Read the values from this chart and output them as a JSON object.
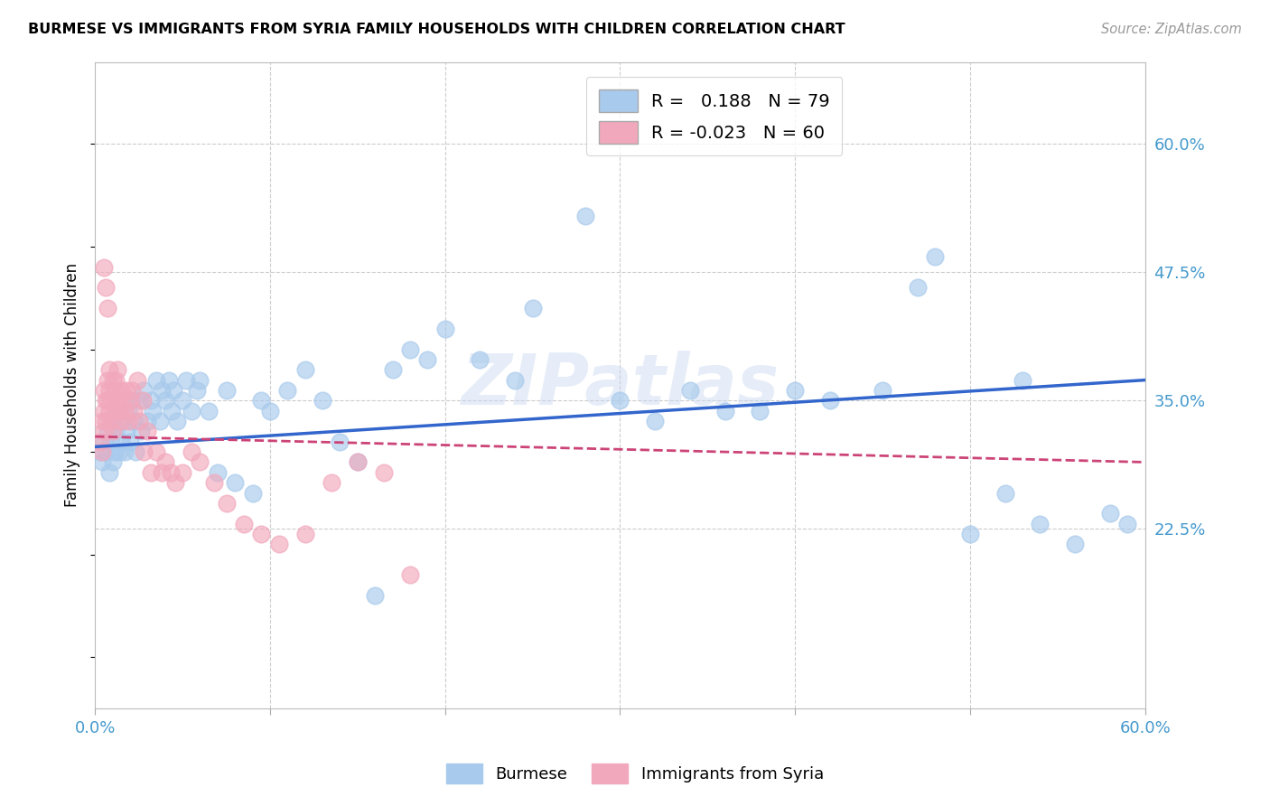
{
  "title": "BURMESE VS IMMIGRANTS FROM SYRIA FAMILY HOUSEHOLDS WITH CHILDREN CORRELATION CHART",
  "source": "Source: ZipAtlas.com",
  "ylabel": "Family Households with Children",
  "xlim": [
    0.0,
    0.6
  ],
  "ylim": [
    0.05,
    0.68
  ],
  "ytick_right_labels": [
    "60.0%",
    "47.5%",
    "35.0%",
    "22.5%"
  ],
  "ytick_right_values": [
    0.6,
    0.475,
    0.35,
    0.225
  ],
  "legend_r_blue": "0.188",
  "legend_n_blue": "79",
  "legend_r_pink": "-0.023",
  "legend_n_pink": "60",
  "blue_color": "#A8CAEC",
  "pink_color": "#F2A8BC",
  "blue_line_color": "#3366CC",
  "pink_line_color": "#CC4477",
  "watermark": "ZIPatlas",
  "burmese_x": [
    0.003,
    0.004,
    0.005,
    0.006,
    0.007,
    0.008,
    0.009,
    0.01,
    0.01,
    0.011,
    0.012,
    0.013,
    0.014,
    0.015,
    0.016,
    0.017,
    0.018,
    0.019,
    0.02,
    0.021,
    0.022,
    0.023,
    0.025,
    0.026,
    0.028,
    0.03,
    0.032,
    0.033,
    0.035,
    0.037,
    0.038,
    0.04,
    0.042,
    0.044,
    0.045,
    0.047,
    0.05,
    0.052,
    0.055,
    0.058,
    0.06,
    0.065,
    0.07,
    0.075,
    0.08,
    0.09,
    0.095,
    0.1,
    0.11,
    0.12,
    0.13,
    0.14,
    0.15,
    0.16,
    0.17,
    0.18,
    0.19,
    0.2,
    0.22,
    0.24,
    0.25,
    0.28,
    0.3,
    0.32,
    0.34,
    0.36,
    0.38,
    0.4,
    0.42,
    0.45,
    0.47,
    0.5,
    0.52,
    0.54,
    0.56,
    0.58,
    0.59,
    0.53,
    0.48
  ],
  "burmese_y": [
    0.3,
    0.29,
    0.31,
    0.3,
    0.32,
    0.28,
    0.31,
    0.33,
    0.29,
    0.3,
    0.32,
    0.34,
    0.3,
    0.31,
    0.33,
    0.3,
    0.32,
    0.34,
    0.31,
    0.35,
    0.33,
    0.3,
    0.35,
    0.32,
    0.36,
    0.33,
    0.35,
    0.34,
    0.37,
    0.33,
    0.36,
    0.35,
    0.37,
    0.34,
    0.36,
    0.33,
    0.35,
    0.37,
    0.34,
    0.36,
    0.37,
    0.34,
    0.28,
    0.36,
    0.27,
    0.26,
    0.35,
    0.34,
    0.36,
    0.38,
    0.35,
    0.31,
    0.29,
    0.16,
    0.38,
    0.4,
    0.39,
    0.42,
    0.39,
    0.37,
    0.44,
    0.53,
    0.35,
    0.33,
    0.36,
    0.34,
    0.34,
    0.36,
    0.35,
    0.36,
    0.46,
    0.22,
    0.26,
    0.23,
    0.21,
    0.24,
    0.23,
    0.37,
    0.49
  ],
  "syria_x": [
    0.003,
    0.004,
    0.004,
    0.005,
    0.005,
    0.005,
    0.006,
    0.006,
    0.007,
    0.007,
    0.008,
    0.008,
    0.008,
    0.009,
    0.009,
    0.01,
    0.01,
    0.011,
    0.011,
    0.012,
    0.012,
    0.013,
    0.013,
    0.014,
    0.015,
    0.015,
    0.016,
    0.017,
    0.018,
    0.019,
    0.02,
    0.021,
    0.022,
    0.024,
    0.025,
    0.027,
    0.028,
    0.03,
    0.032,
    0.035,
    0.038,
    0.04,
    0.043,
    0.046,
    0.05,
    0.055,
    0.06,
    0.068,
    0.075,
    0.085,
    0.095,
    0.105,
    0.12,
    0.135,
    0.15,
    0.165,
    0.18,
    0.005,
    0.006,
    0.007
  ],
  "syria_y": [
    0.31,
    0.3,
    0.33,
    0.32,
    0.34,
    0.36,
    0.33,
    0.35,
    0.37,
    0.35,
    0.36,
    0.34,
    0.38,
    0.33,
    0.35,
    0.32,
    0.37,
    0.34,
    0.36,
    0.35,
    0.37,
    0.35,
    0.38,
    0.34,
    0.36,
    0.33,
    0.35,
    0.34,
    0.36,
    0.33,
    0.35,
    0.36,
    0.34,
    0.37,
    0.33,
    0.35,
    0.3,
    0.32,
    0.28,
    0.3,
    0.28,
    0.29,
    0.28,
    0.27,
    0.28,
    0.3,
    0.29,
    0.27,
    0.25,
    0.23,
    0.22,
    0.21,
    0.22,
    0.27,
    0.29,
    0.28,
    0.18,
    0.48,
    0.46,
    0.44
  ]
}
